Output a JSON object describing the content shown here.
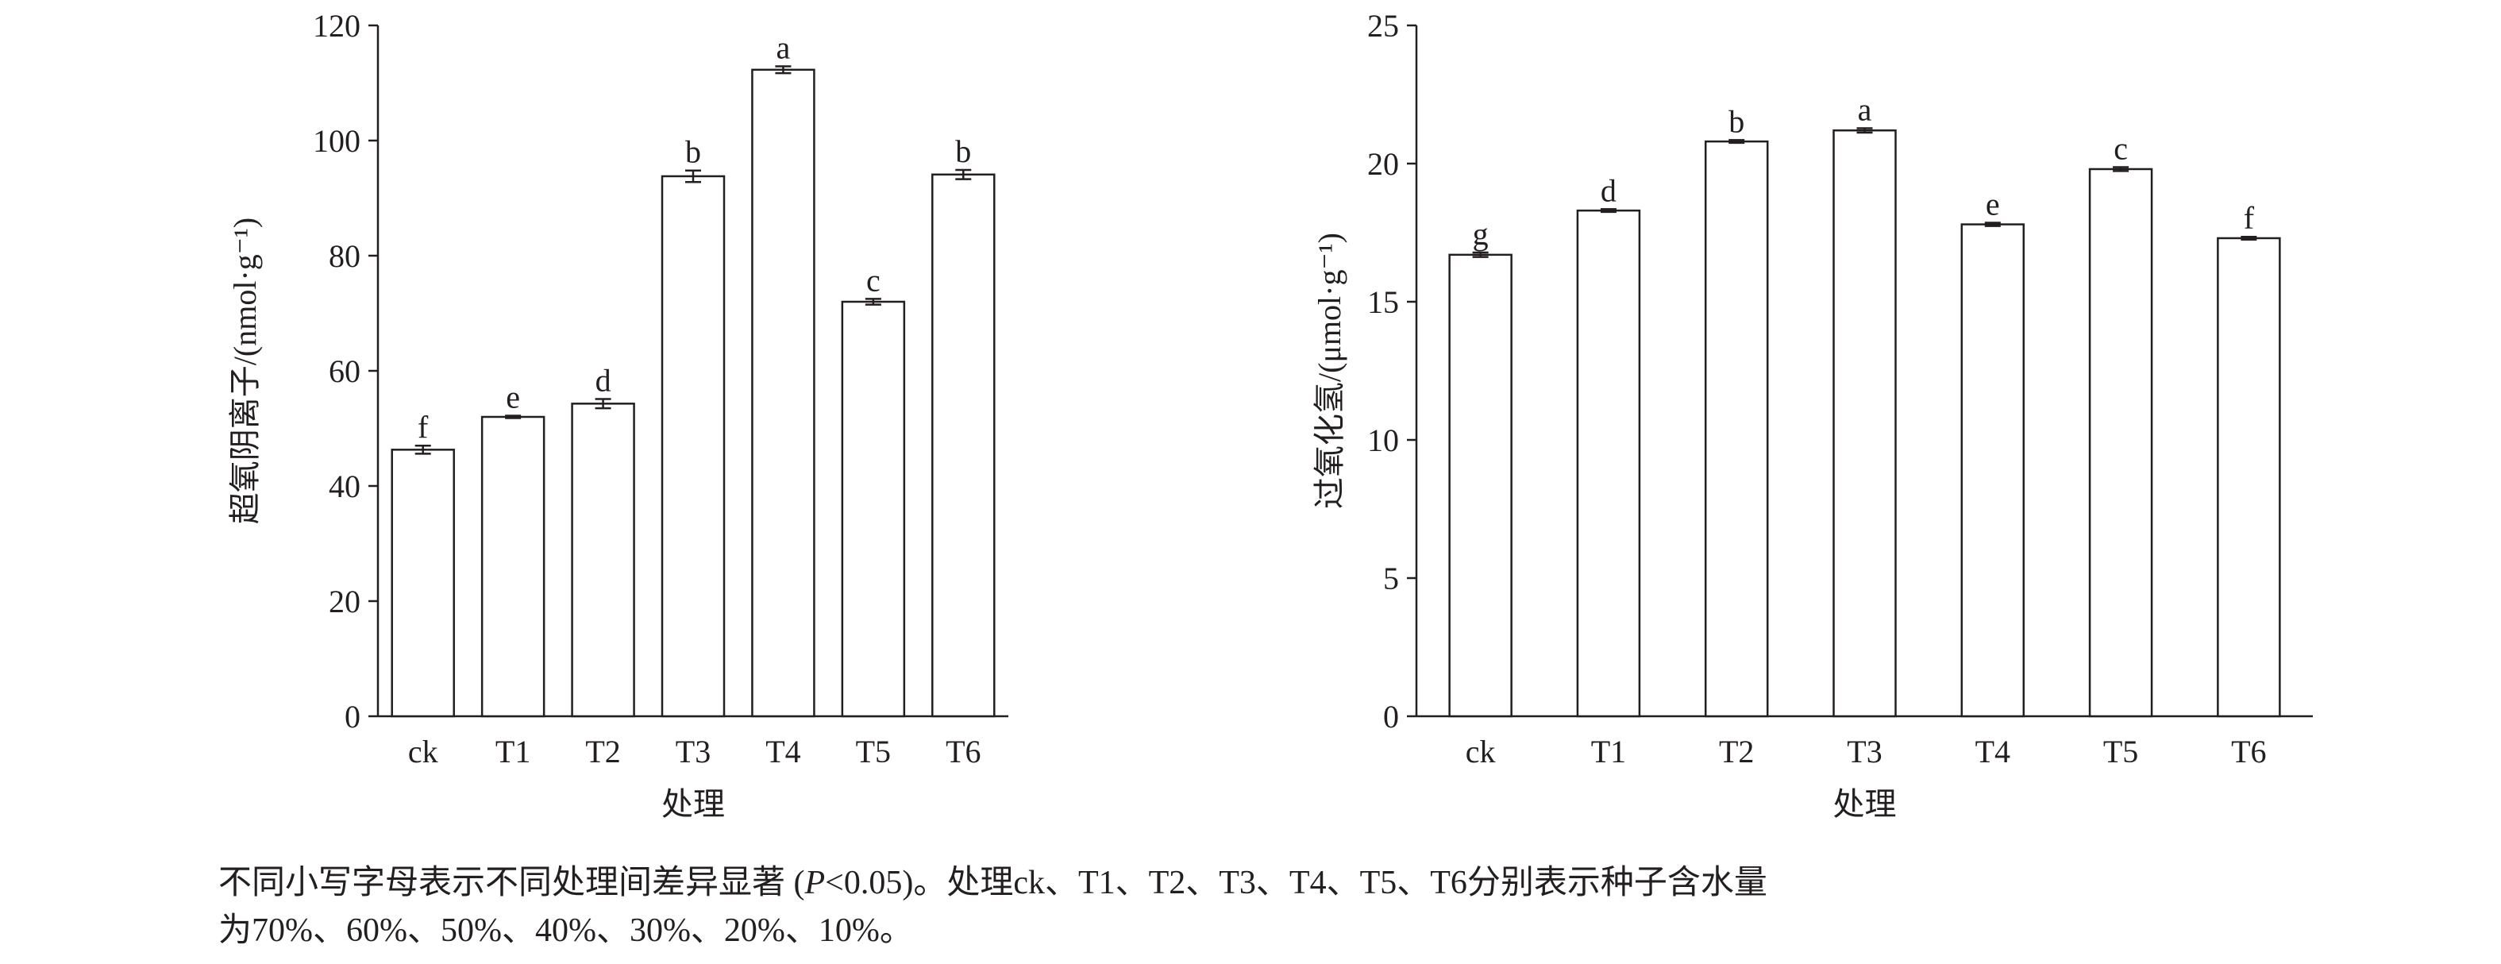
{
  "chart_data": [
    {
      "type": "bar",
      "y_label": "超氧阴离子/(nmol·g⁻¹)",
      "x_label": "处理",
      "categories": [
        "ck",
        "T1",
        "T2",
        "T3",
        "T4",
        "T5",
        "T6"
      ],
      "values": [
        46.3,
        52.0,
        54.3,
        93.8,
        112.3,
        72.0,
        94.1
      ],
      "errors": [
        0.7,
        0.2,
        0.8,
        1.0,
        0.6,
        0.5,
        0.8
      ],
      "annotations": [
        "f",
        "e",
        "d",
        "b",
        "a",
        "c",
        "b"
      ],
      "color": "#ffffff",
      "ylim": [
        0,
        120
      ],
      "yticks": [
        0,
        20,
        40,
        60,
        80,
        100,
        120
      ]
    },
    {
      "type": "bar",
      "y_label": "过氧化氢/(μmol·g⁻¹)",
      "x_label": "处理",
      "categories": [
        "ck",
        "T1",
        "T2",
        "T3",
        "T4",
        "T5",
        "T6"
      ],
      "values": [
        16.7,
        18.3,
        20.8,
        21.2,
        17.8,
        19.8,
        17.3
      ],
      "errors": [
        0.08,
        0.05,
        0.05,
        0.08,
        0.06,
        0.07,
        0.05
      ],
      "annotations": [
        "g",
        "d",
        "b",
        "a",
        "e",
        "c",
        "f"
      ],
      "color": "#ffffff",
      "ylim": [
        0,
        25
      ],
      "yticks": [
        0,
        5,
        10,
        15,
        20,
        25
      ]
    }
  ],
  "caption": [
    [
      "不同小写字母表示不同处理间差异显著 (",
      "P",
      "<0.05)。处理ck、T1、T2、T3、T4、T5、T6分别表示种子含水量"
    ],
    [
      "为70%、60%、50%、40%、30%、20%、10%。"
    ]
  ]
}
